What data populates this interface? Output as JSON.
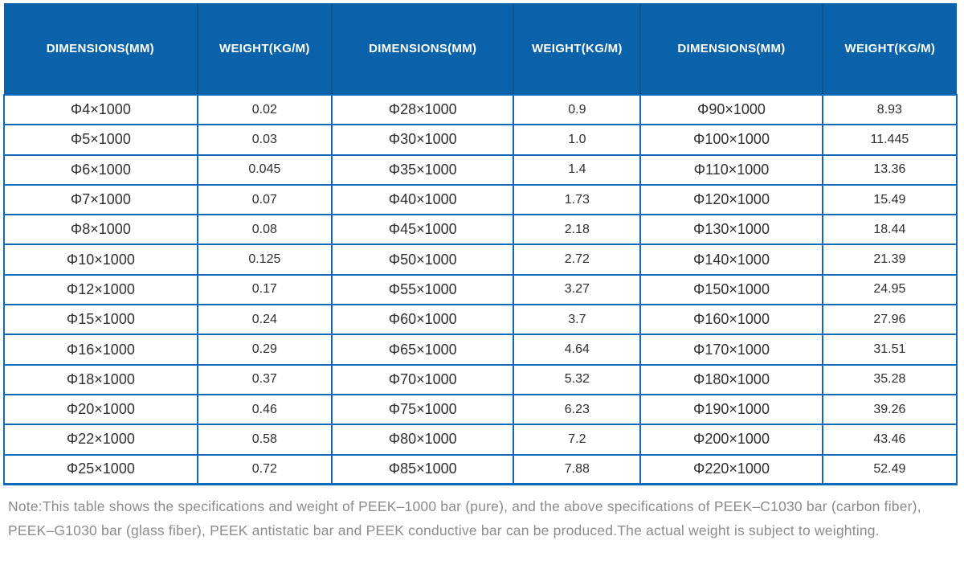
{
  "colors": {
    "header_bg": "#0a62ab",
    "header_separator": "#0a5291",
    "header_text": "#ffffff",
    "grid_border": "#1268b8",
    "cell_text": "#2f2f2f",
    "note_text": "#8c8c8c"
  },
  "table": {
    "column_headers": [
      "DIMENSIONS(MM)",
      "WEIGHT(KG/M)",
      "DIMENSIONS(MM)",
      "WEIGHT(KG/M)",
      "DIMENSIONS(MM)",
      "WEIGHT(KG/M)"
    ],
    "rows": [
      [
        "Φ4×1000",
        "0.02",
        "Φ28×1000",
        "0.9",
        "Φ90×1000",
        "8.93"
      ],
      [
        "Φ5×1000",
        "0.03",
        "Φ30×1000",
        "1.0",
        "Φ100×1000",
        "11.445"
      ],
      [
        "Φ6×1000",
        "0.045",
        "Φ35×1000",
        "1.4",
        "Φ110×1000",
        "13.36"
      ],
      [
        "Φ7×1000",
        "0.07",
        "Φ40×1000",
        "1.73",
        "Φ120×1000",
        "15.49"
      ],
      [
        "Φ8×1000",
        "0.08",
        "Φ45×1000",
        "2.18",
        "Φ130×1000",
        "18.44"
      ],
      [
        "Φ10×1000",
        "0.125",
        "Φ50×1000",
        "2.72",
        "Φ140×1000",
        "21.39"
      ],
      [
        "Φ12×1000",
        "0.17",
        "Φ55×1000",
        "3.27",
        "Φ150×1000",
        "24.95"
      ],
      [
        "Φ15×1000",
        "0.24",
        "Φ60×1000",
        "3.7",
        "Φ160×1000",
        "27.96"
      ],
      [
        "Φ16×1000",
        "0.29",
        "Φ65×1000",
        "4.64",
        "Φ170×1000",
        "31.51"
      ],
      [
        "Φ18×1000",
        "0.37",
        "Φ70×1000",
        "5.32",
        "Φ180×1000",
        "35.28"
      ],
      [
        "Φ20×1000",
        "0.46",
        "Φ75×1000",
        "6.23",
        "Φ190×1000",
        "39.26"
      ],
      [
        "Φ22×1000",
        "0.58",
        "Φ80×1000",
        "7.2",
        "Φ200×1000",
        "43.46"
      ],
      [
        "Φ25×1000",
        "0.72",
        "Φ85×1000",
        "7.88",
        "Φ220×1000",
        "52.49"
      ]
    ]
  },
  "note": {
    "text": "Note:This table shows the specifications and weight of PEEK–1000 bar (pure), and the above specifications of PEEK–C1030 bar (carbon fiber), PEEK–G1030 bar (glass fiber), PEEK antistatic bar and PEEK conductive bar can be produced.The actual weight is subject to weighting."
  }
}
